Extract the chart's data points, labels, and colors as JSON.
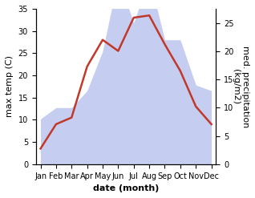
{
  "months": [
    "Jan",
    "Feb",
    "Mar",
    "Apr",
    "May",
    "Jun",
    "Jul",
    "Aug",
    "Sep",
    "Oct",
    "Nov",
    "Dec"
  ],
  "temperature": [
    3.5,
    9.0,
    10.5,
    22.0,
    28.0,
    25.5,
    33.0,
    33.5,
    27.0,
    21.0,
    13.0,
    9.0
  ],
  "precipitation": [
    8,
    10,
    10,
    13,
    20,
    33,
    25,
    33,
    22,
    22,
    14,
    13
  ],
  "temp_color": "#c0392b",
  "precip_fill_color": "#c5cdf0",
  "ylabel_left": "max temp (C)",
  "ylabel_right": "med. precipitation\n(kg/m2)",
  "xlabel": "date (month)",
  "ylim_left": [
    0,
    35
  ],
  "ylim_right": [
    0,
    27.5
  ],
  "right_tick_vals": [
    0,
    5,
    10,
    15,
    20,
    25
  ],
  "left_tick_vals": [
    0,
    5,
    10,
    15,
    20,
    25,
    30,
    35
  ],
  "label_fontsize": 8,
  "tick_fontsize": 7,
  "background_color": "#ffffff",
  "line_width": 1.8
}
